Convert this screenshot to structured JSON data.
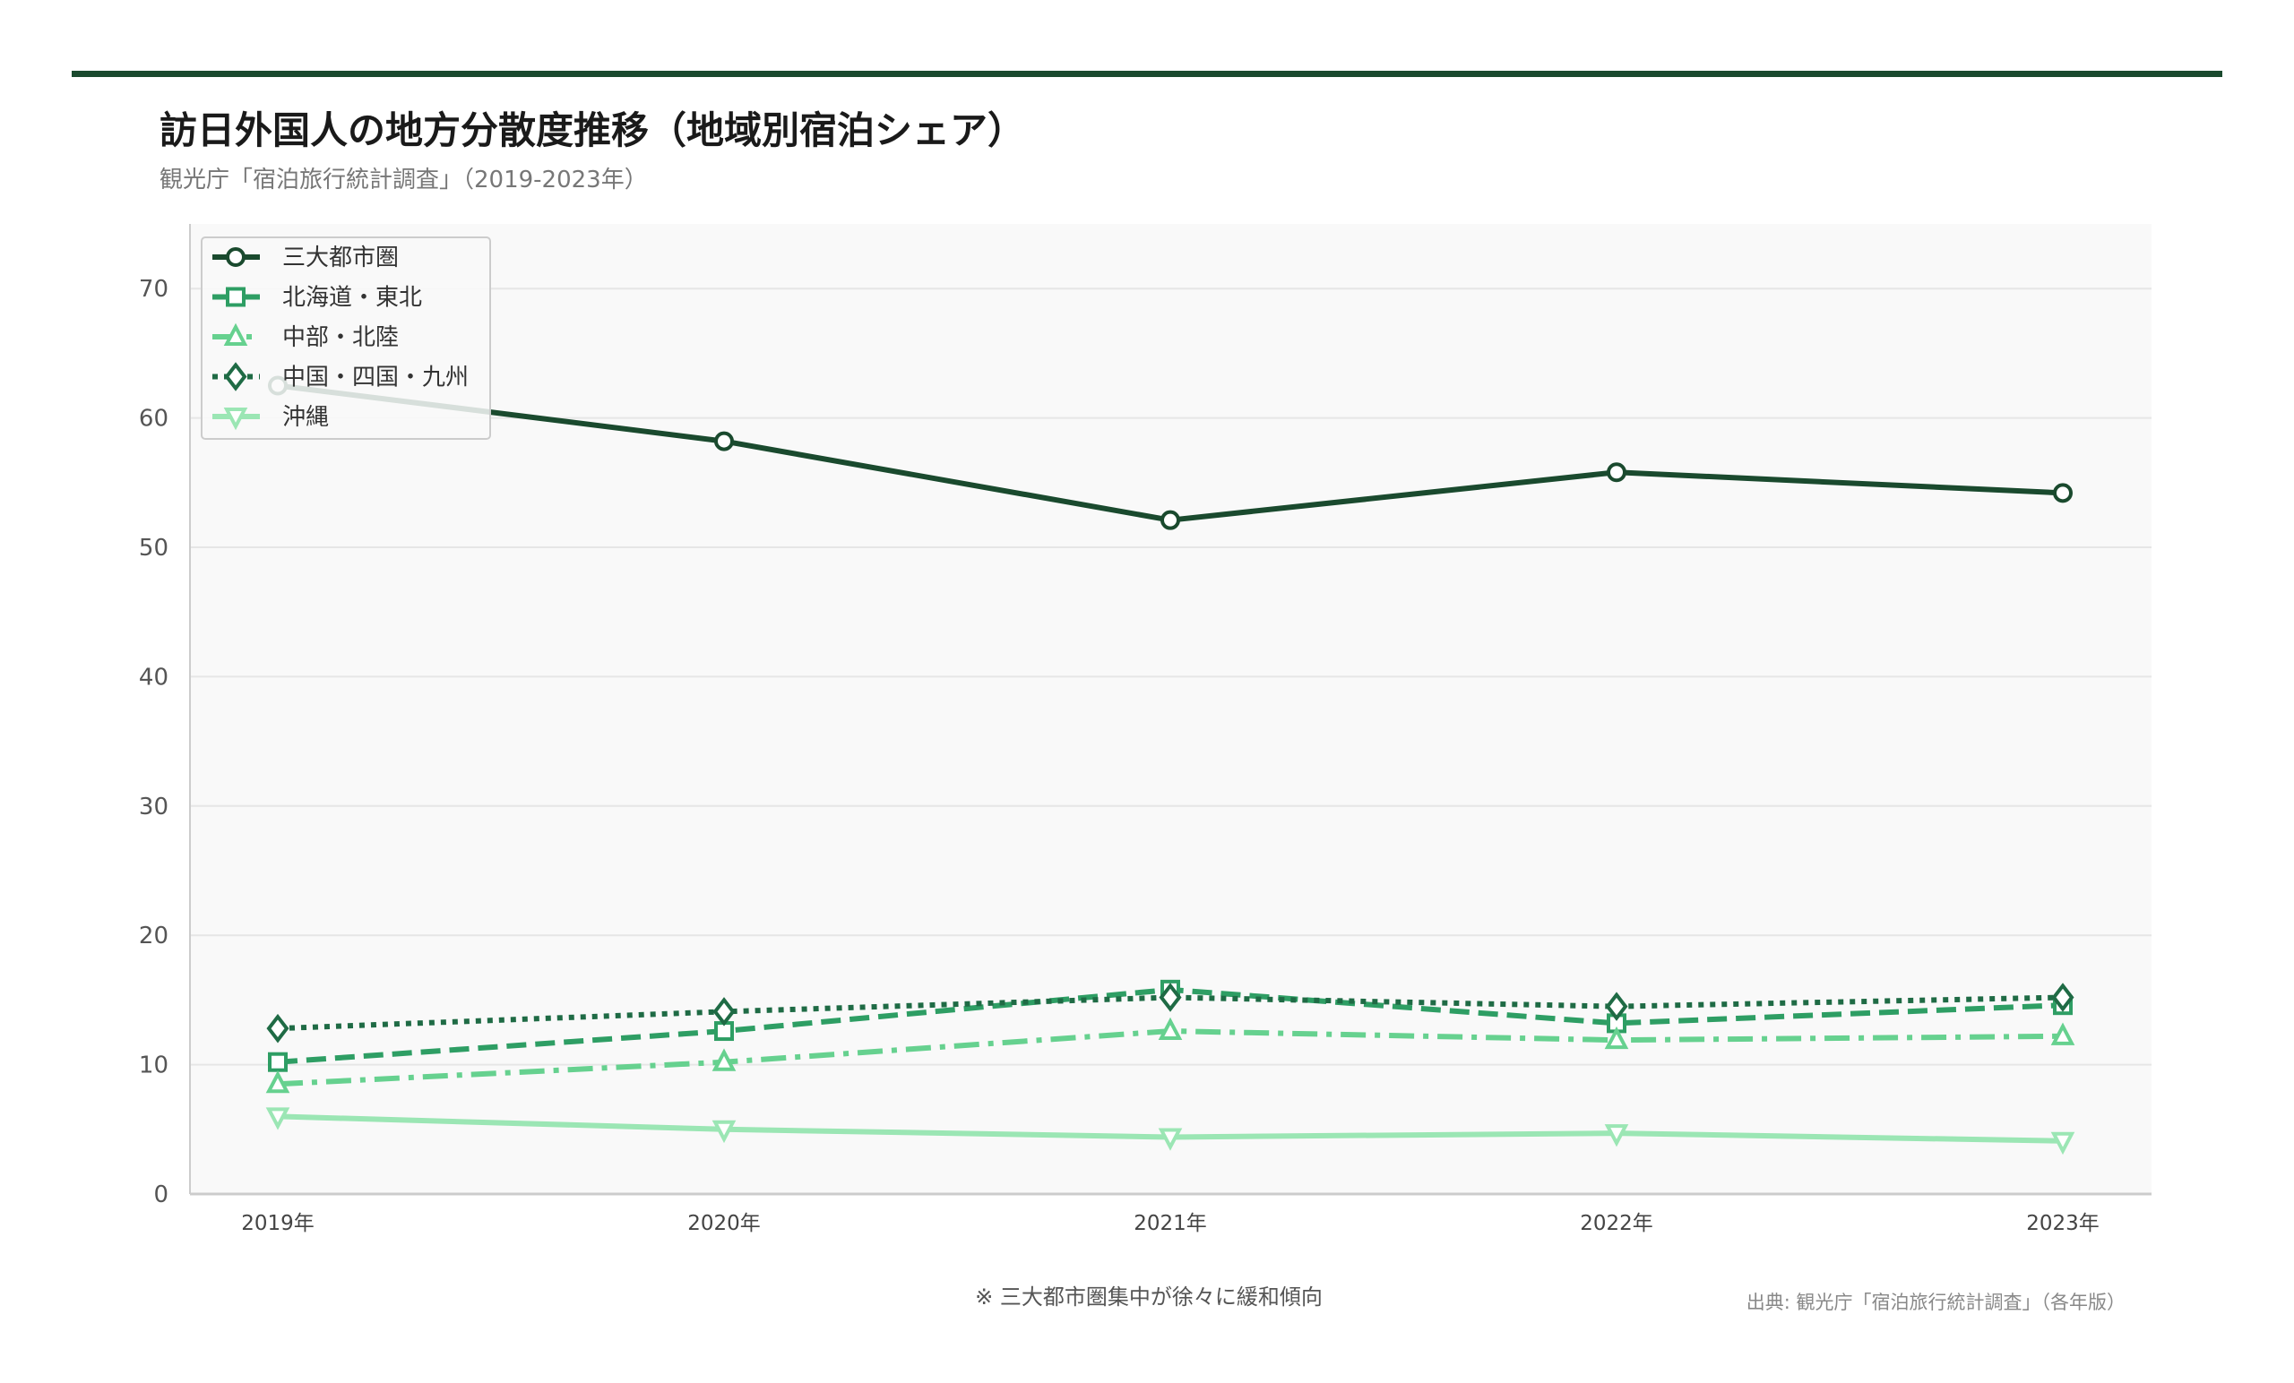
{
  "chart_data": {
    "type": "line",
    "title": "訪日外国人の地方分散度推移（地域別宿泊シェア）",
    "subtitle": "観光庁「宿泊旅行統計調査」（2019-2023年）",
    "xlabel": "",
    "ylabel": "",
    "categories": [
      "2019年",
      "2020年",
      "2021年",
      "2022年",
      "2023年"
    ],
    "ylim": [
      0,
      75
    ],
    "yticks": [
      0,
      10,
      20,
      30,
      40,
      50,
      60,
      70
    ],
    "grid": true,
    "legend_position": "top-left",
    "series": [
      {
        "name": "三大都市圏",
        "values": [
          62.5,
          58.2,
          52.1,
          55.8,
          54.2
        ],
        "color": "#1a4a2e",
        "marker": "circle",
        "dash": "solid"
      },
      {
        "name": "北海道・東北",
        "values": [
          10.2,
          12.6,
          15.8,
          13.2,
          14.6
        ],
        "color": "#2e9e64",
        "marker": "square",
        "dash": "dashed"
      },
      {
        "name": "中部・北陸",
        "values": [
          8.5,
          10.2,
          12.6,
          11.9,
          12.2
        ],
        "color": "#66d18f",
        "marker": "triangle-up",
        "dash": "dashdot"
      },
      {
        "name": "中国・四国・九州",
        "values": [
          12.8,
          14.1,
          15.2,
          14.5,
          15.2
        ],
        "color": "#1f6b45",
        "marker": "diamond",
        "dash": "dotted"
      },
      {
        "name": "沖縄",
        "values": [
          6.0,
          5.0,
          4.4,
          4.7,
          4.1
        ],
        "color": "#9be6b4",
        "marker": "triangle-down",
        "dash": "solid"
      }
    ],
    "annotation": "※ 三大都市圏集中が徐々に緩和傾向",
    "source": "出典: 観光庁「宿泊旅行統計調査」（各年版）"
  }
}
